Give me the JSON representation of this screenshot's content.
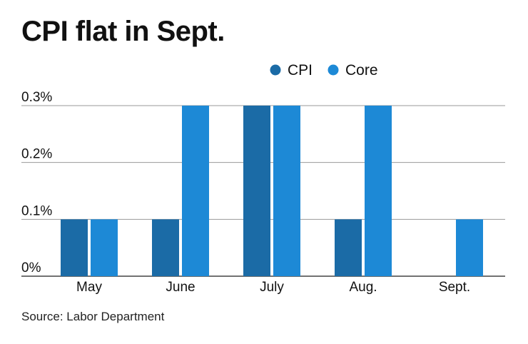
{
  "chart_data": {
    "type": "bar",
    "title": "CPI flat in Sept.",
    "categories": [
      "May",
      "June",
      "July",
      "Aug.",
      "Sept."
    ],
    "series": [
      {
        "name": "CPI",
        "color": "#1b6ba6",
        "values": [
          0.1,
          0.1,
          0.3,
          0.1,
          0.0
        ]
      },
      {
        "name": "Core",
        "color": "#1d89d6",
        "values": [
          0.1,
          0.3,
          0.3,
          0.3,
          0.1
        ]
      }
    ],
    "ylim": [
      0,
      0.3
    ],
    "yticks": [
      0,
      0.1,
      0.2,
      0.3
    ],
    "ytick_labels": [
      "0%",
      "0.1%",
      "0.2%",
      "0.3%"
    ],
    "xlabel": "",
    "ylabel": "",
    "grid": true,
    "legend_position": "top"
  },
  "source": "Source: Labor Department"
}
